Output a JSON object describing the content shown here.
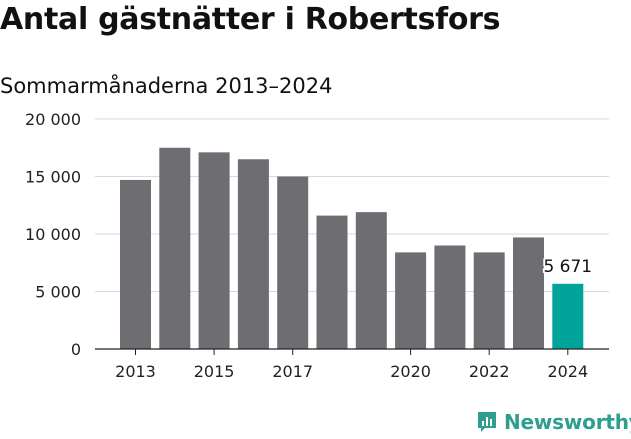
{
  "title": "Antal gästnätter i Robertsfors",
  "subtitle": "Sommarmånaderna 2013–2024",
  "brand": {
    "name": "Newsworthy",
    "icon": "newsworthy-logo-icon",
    "color": "#2e9e8f"
  },
  "colors": {
    "bar": "#6e6d72",
    "highlight": "#00a49a",
    "grid": "#d9d9d9",
    "axis": "#222222"
  },
  "chart_data": {
    "type": "bar",
    "categories": [
      "2013",
      "2014",
      "2015",
      "2016",
      "2017",
      "2018",
      "2019",
      "2020",
      "2021",
      "2022",
      "2023",
      "2024"
    ],
    "values": [
      14700,
      17500,
      17100,
      16500,
      15000,
      11600,
      11900,
      8400,
      9000,
      8400,
      9700,
      5671
    ],
    "highlight_index": 11,
    "annotations": [
      {
        "category": "2024",
        "text": "5 671"
      }
    ],
    "x_tick_labels": [
      "2013",
      "",
      "2015",
      "",
      "2017",
      "",
      "",
      "2020",
      "",
      "2022",
      "",
      "2024"
    ],
    "y_ticks": [
      0,
      5000,
      10000,
      15000,
      20000
    ],
    "y_tick_labels": [
      "0",
      "5 000",
      "10 000",
      "15 000",
      "20 000"
    ],
    "ylim": [
      0,
      20000
    ],
    "grid": true,
    "legend": "none"
  }
}
